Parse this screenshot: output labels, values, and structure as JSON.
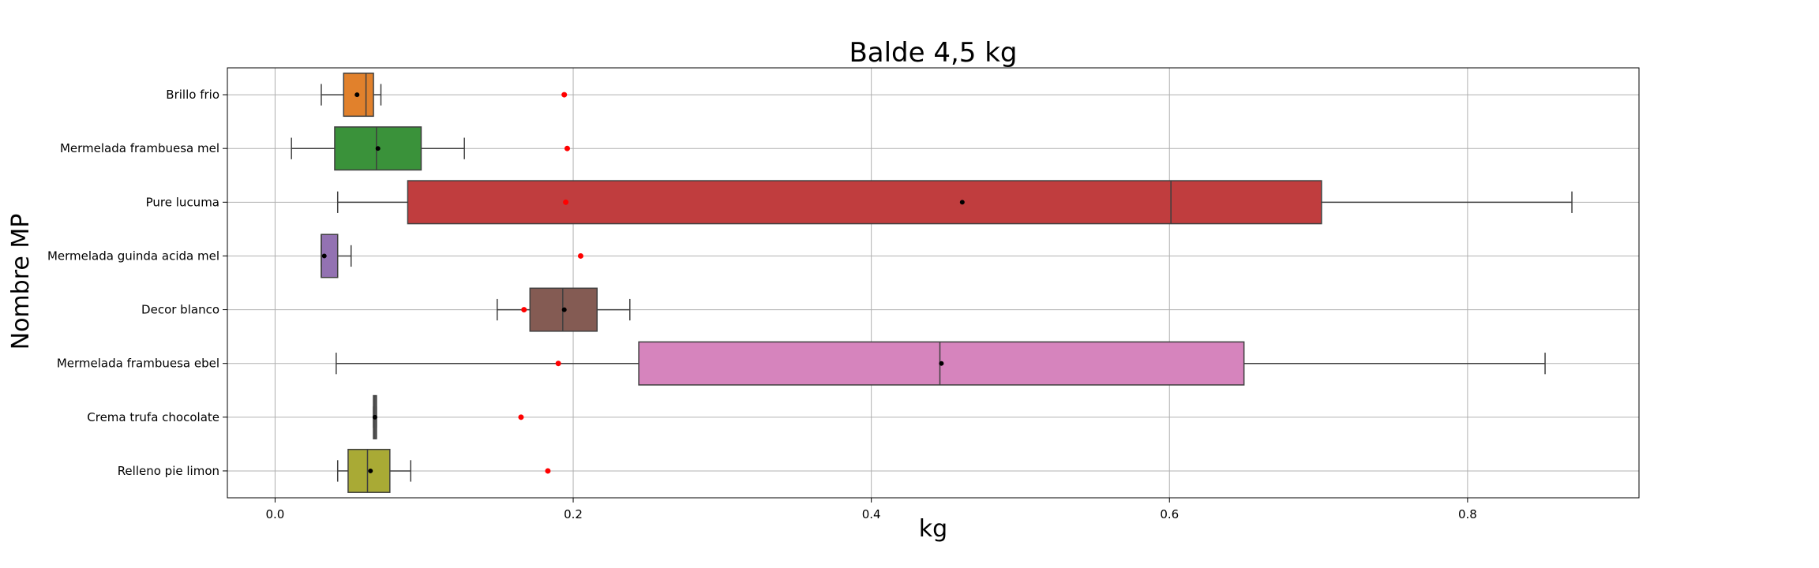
{
  "chart_data": {
    "type": "boxplot",
    "orientation": "horizontal",
    "title": "Balde 4,5 kg",
    "xlabel": "kg",
    "ylabel": "Nombre MP",
    "xlim": [
      -0.032,
      0.915
    ],
    "xticks": [
      0.0,
      0.2,
      0.4,
      0.6,
      0.8
    ],
    "xtick_labels": [
      "0.0",
      "0.2",
      "0.4",
      "0.6",
      "0.8"
    ],
    "grid": true,
    "categories": [
      "Brillo frio",
      "Mermelada frambuesa mel",
      "Pure lucuma",
      "Mermelada guinda acida mel",
      "Decor blanco",
      "Mermelada frambuesa ebel",
      "Crema trufa chocolate",
      "Relleno pie limon"
    ],
    "boxes": [
      {
        "category": "Brillo frio",
        "whisker_low": 0.031,
        "q1": 0.046,
        "median": 0.061,
        "q3": 0.066,
        "whisker_high": 0.071,
        "mean": 0.055,
        "reference": 0.194,
        "color": "#E1812C"
      },
      {
        "category": "Mermelada frambuesa mel",
        "whisker_low": 0.011,
        "q1": 0.04,
        "median": 0.068,
        "q3": 0.098,
        "whisker_high": 0.127,
        "mean": 0.069,
        "reference": 0.196,
        "color": "#3A923A"
      },
      {
        "category": "Pure lucuma",
        "whisker_low": 0.042,
        "q1": 0.089,
        "median": 0.601,
        "q3": 0.702,
        "whisker_high": 0.87,
        "mean": 0.461,
        "reference": 0.195,
        "color": "#C03D3E"
      },
      {
        "category": "Mermelada guinda acida mel",
        "whisker_low": 0.031,
        "q1": 0.031,
        "median": 0.031,
        "q3": 0.042,
        "whisker_high": 0.051,
        "mean": 0.033,
        "reference": 0.205,
        "color": "#9372B2"
      },
      {
        "category": "Decor blanco",
        "whisker_low": 0.149,
        "q1": 0.171,
        "median": 0.193,
        "q3": 0.216,
        "whisker_high": 0.238,
        "mean": 0.194,
        "reference": 0.167,
        "color": "#845B53"
      },
      {
        "category": "Mermelada frambuesa ebel",
        "whisker_low": 0.041,
        "q1": 0.244,
        "median": 0.446,
        "q3": 0.65,
        "whisker_high": 0.852,
        "mean": 0.447,
        "reference": 0.19,
        "color": "#D684BD"
      },
      {
        "category": "Crema trufa chocolate",
        "whisker_low": 0.066,
        "q1": 0.066,
        "median": 0.067,
        "q3": 0.068,
        "whisker_high": 0.068,
        "mean": 0.067,
        "reference": 0.165,
        "color": "#7F7F7F"
      },
      {
        "category": "Relleno pie limon",
        "whisker_low": 0.042,
        "q1": 0.049,
        "median": 0.062,
        "q3": 0.077,
        "whisker_high": 0.091,
        "mean": 0.064,
        "reference": 0.183,
        "color": "#A9AA35"
      }
    ],
    "reference_marker_color": "#FF0000",
    "mean_marker_color": "#000000"
  }
}
